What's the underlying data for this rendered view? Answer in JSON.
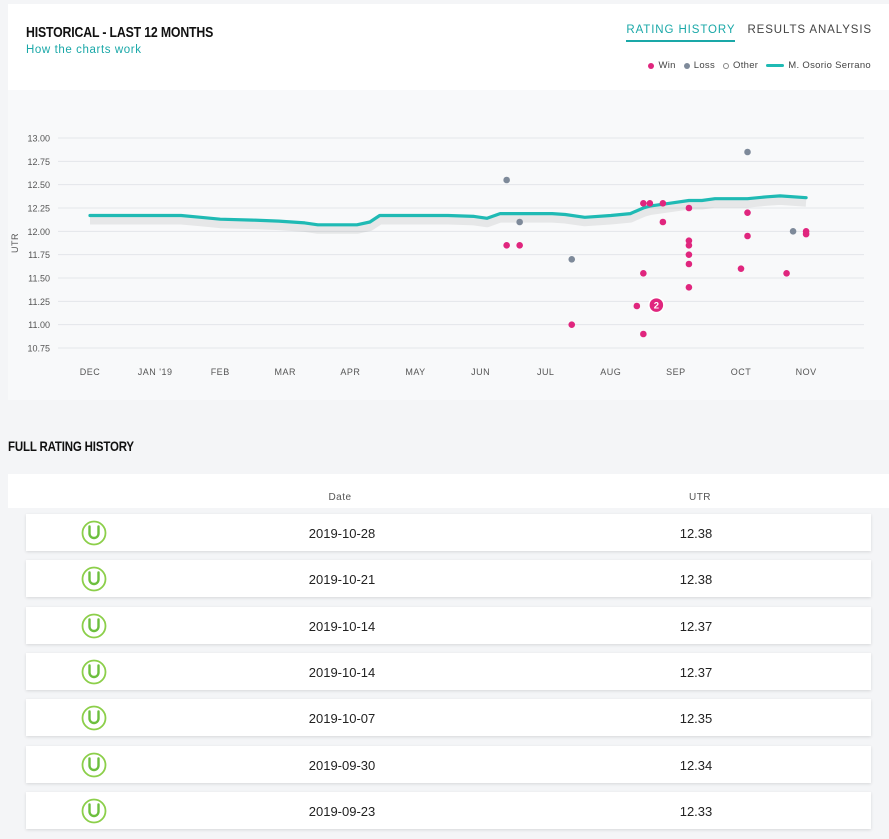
{
  "header": {
    "title": "HISTORICAL - LAST 12 MONTHS",
    "link": "How the charts work",
    "tabs": [
      {
        "label": "RATING HISTORY",
        "active": true
      },
      {
        "label": "RESULTS ANALYSIS",
        "active": false
      }
    ],
    "legend": {
      "win": "Win",
      "loss": "Loss",
      "other": "Other",
      "player": "M. Osorio Serrano"
    }
  },
  "colors": {
    "accent": "#1aa8a8",
    "win": "#e0267e",
    "loss": "#7e8a9a",
    "line": "#1fbab4"
  },
  "chart_data": {
    "type": "line",
    "ylabel": "UTR",
    "ylim": [
      10.75,
      13.0
    ],
    "yticks": [
      "13.00",
      "12.75",
      "12.50",
      "12.25",
      "12.00",
      "11.75",
      "11.50",
      "11.25",
      "11.00",
      "10.75"
    ],
    "xticks": [
      "DEC",
      "JAN '19",
      "FEB",
      "MAR",
      "APR",
      "MAY",
      "JUN",
      "JUL",
      "AUG",
      "SEP",
      "OCT",
      "NOV"
    ],
    "grid": true,
    "series": [
      {
        "name": "M. Osorio Serrano",
        "points": [
          [
            0,
            12.17
          ],
          [
            0.5,
            12.17
          ],
          [
            1.0,
            12.17
          ],
          [
            1.4,
            12.17
          ],
          [
            1.7,
            12.15
          ],
          [
            2.0,
            12.13
          ],
          [
            2.5,
            12.12
          ],
          [
            2.9,
            12.11
          ],
          [
            3.3,
            12.09
          ],
          [
            3.5,
            12.07
          ],
          [
            4.1,
            12.07
          ],
          [
            4.3,
            12.1
          ],
          [
            4.45,
            12.17
          ],
          [
            4.8,
            12.17
          ],
          [
            5.5,
            12.17
          ],
          [
            5.9,
            12.16
          ],
          [
            6.1,
            12.14
          ],
          [
            6.3,
            12.19
          ],
          [
            6.5,
            12.19
          ],
          [
            7.1,
            12.19
          ],
          [
            7.3,
            12.18
          ],
          [
            7.6,
            12.15
          ],
          [
            8.0,
            12.17
          ],
          [
            8.3,
            12.19
          ],
          [
            8.5,
            12.25
          ],
          [
            8.6,
            12.27
          ],
          [
            8.9,
            12.3
          ],
          [
            9.2,
            12.33
          ],
          [
            9.4,
            12.33
          ],
          [
            9.6,
            12.35
          ],
          [
            10.1,
            12.35
          ],
          [
            10.4,
            12.37
          ],
          [
            10.6,
            12.38
          ],
          [
            11.0,
            12.36
          ]
        ]
      }
    ],
    "wins": [
      [
        6.4,
        11.85
      ],
      [
        6.6,
        11.85
      ],
      [
        7.4,
        11.0
      ],
      [
        8.4,
        11.2
      ],
      [
        8.5,
        11.55
      ],
      [
        8.5,
        10.9
      ],
      [
        8.5,
        12.3
      ],
      [
        8.6,
        12.3
      ],
      [
        8.8,
        12.3
      ],
      [
        8.8,
        12.1
      ],
      [
        9.2,
        12.25
      ],
      [
        9.2,
        11.9
      ],
      [
        9.2,
        11.85
      ],
      [
        9.2,
        11.75
      ],
      [
        9.2,
        11.65
      ],
      [
        9.2,
        11.4
      ],
      [
        10.0,
        11.6
      ],
      [
        10.1,
        12.2
      ],
      [
        10.1,
        11.95
      ],
      [
        10.7,
        11.55
      ],
      [
        11.0,
        12.0
      ],
      [
        11.0,
        11.97
      ]
    ],
    "wins_grouped": [
      {
        "x": 8.7,
        "y": 11.21,
        "count": 2
      }
    ],
    "losses": [
      [
        6.4,
        12.55
      ],
      [
        6.6,
        12.1
      ],
      [
        7.4,
        11.7
      ],
      [
        10.1,
        12.85
      ],
      [
        10.8,
        12.0
      ]
    ]
  },
  "table": {
    "title": "FULL RATING HISTORY",
    "columns": [
      "Date",
      "UTR"
    ],
    "rows": [
      {
        "date": "2019-10-28",
        "utr": "12.38"
      },
      {
        "date": "2019-10-21",
        "utr": "12.38"
      },
      {
        "date": "2019-10-14",
        "utr": "12.37"
      },
      {
        "date": "2019-10-14",
        "utr": "12.37"
      },
      {
        "date": "2019-10-07",
        "utr": "12.35"
      },
      {
        "date": "2019-09-30",
        "utr": "12.34"
      },
      {
        "date": "2019-09-23",
        "utr": "12.33"
      }
    ]
  }
}
